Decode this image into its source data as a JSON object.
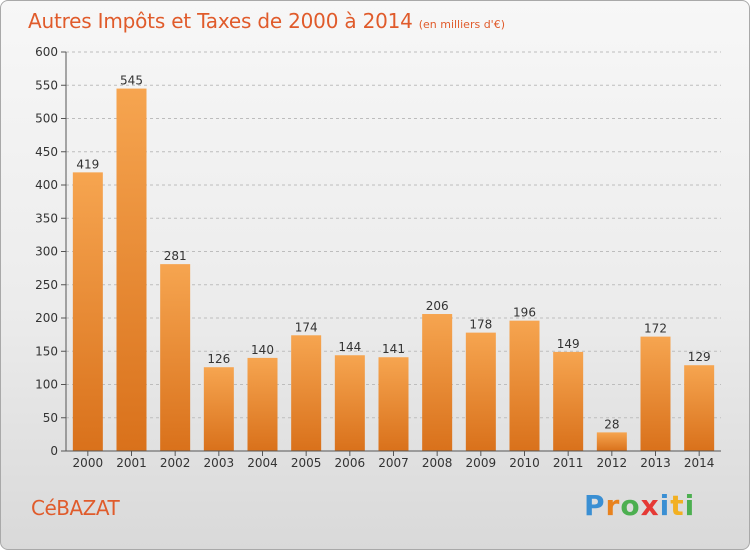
{
  "header": {
    "title": "Autres Impôts et Taxes de 2000 à 2014",
    "unit": "(en milliers d'€)"
  },
  "footer": {
    "commune": "CéBAZAT",
    "logo_letters": [
      "P",
      "r",
      "o",
      "x",
      "i",
      "t",
      "i"
    ],
    "logo_colors": [
      "#3a8fd3",
      "#e8821e",
      "#4caf50",
      "#e53935",
      "#3a8fd3",
      "#f2b021",
      "#4caf50"
    ]
  },
  "colors": {
    "title": "#e05b2b",
    "bar_light": "#f6a550",
    "bar_dark": "#d9711b",
    "axis": "#555555"
  },
  "chart_data": {
    "type": "bar",
    "categories": [
      "2000",
      "2001",
      "2002",
      "2003",
      "2004",
      "2005",
      "2006",
      "2007",
      "2008",
      "2009",
      "2010",
      "2011",
      "2012",
      "2013",
      "2014"
    ],
    "values": [
      419,
      545,
      281,
      126,
      140,
      174,
      144,
      141,
      206,
      178,
      196,
      149,
      28,
      172,
      129
    ],
    "y_ticks": [
      0,
      50,
      100,
      150,
      200,
      250,
      300,
      350,
      400,
      450,
      500,
      550,
      600
    ],
    "ylim": [
      0,
      600
    ],
    "grid": true
  }
}
